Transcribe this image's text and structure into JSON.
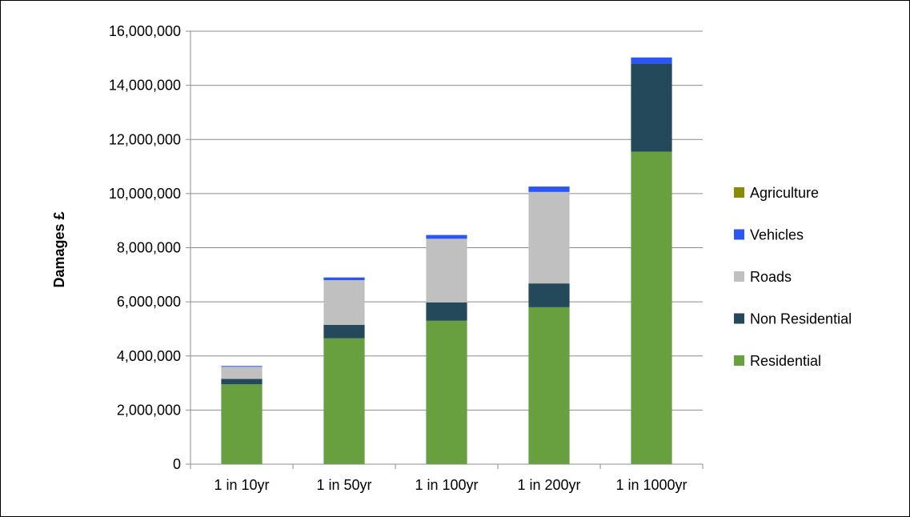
{
  "chart_data": {
    "type": "bar",
    "stacked": true,
    "title": "",
    "xlabel": "",
    "ylabel": "Damages £",
    "ylim": [
      0,
      16000000
    ],
    "y_ticks": [
      0,
      2000000,
      4000000,
      6000000,
      8000000,
      10000000,
      12000000,
      14000000,
      16000000
    ],
    "y_tick_labels": [
      "0",
      "2,000,000",
      "4,000,000",
      "6,000,000",
      "8,000,000",
      "10,000,000",
      "12,000,000",
      "14,000,000",
      "16,000,000"
    ],
    "categories": [
      "1 in 10yr",
      "1 in 50yr",
      "1 in 100yr",
      "1 in 200yr",
      "1 in 1000yr"
    ],
    "grid": true,
    "legend_position": "right",
    "series": [
      {
        "name": "Residential",
        "color": "#68a03f",
        "values": [
          2950000,
          4650000,
          5300000,
          5800000,
          11550000
        ]
      },
      {
        "name": "Non Residential",
        "color": "#24495b",
        "values": [
          200000,
          500000,
          680000,
          880000,
          3250000
        ]
      },
      {
        "name": "Roads",
        "color": "#c0c0c0",
        "values": [
          450000,
          1650000,
          2350000,
          3380000,
          0
        ]
      },
      {
        "name": "Vehicles",
        "color": "#2b55f5",
        "values": [
          30000,
          100000,
          140000,
          200000,
          230000
        ]
      },
      {
        "name": "Agriculture",
        "color": "#8b8a05",
        "values": [
          0,
          0,
          0,
          0,
          0
        ]
      }
    ]
  }
}
